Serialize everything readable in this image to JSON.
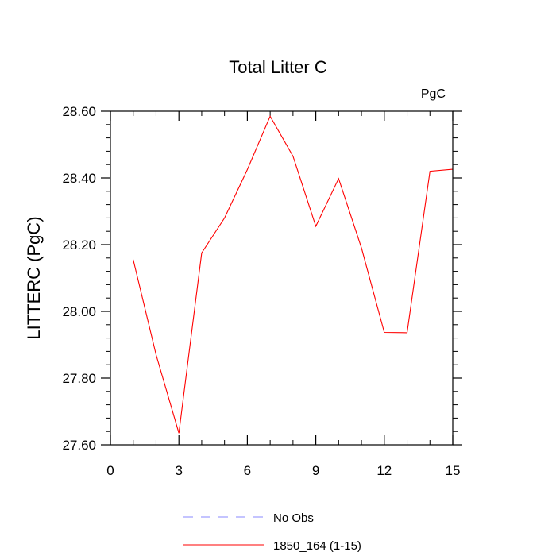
{
  "chart_data": {
    "type": "line",
    "title": "Total Litter C",
    "units_label": "PgC",
    "ylabel": "LITTERC  (PgC)",
    "xlabel": "",
    "xlim": [
      0,
      15
    ],
    "ylim": [
      27.6,
      28.6
    ],
    "x_ticks": [
      0,
      3,
      6,
      9,
      12,
      15
    ],
    "x_tick_labels": [
      "0",
      "3",
      "6",
      "9",
      "12",
      "15"
    ],
    "y_ticks": [
      27.6,
      27.8,
      28.0,
      28.2,
      28.4,
      28.6
    ],
    "y_tick_labels": [
      "27.60",
      "27.80",
      "28.00",
      "28.20",
      "28.40",
      "28.60"
    ],
    "grid": false,
    "legend_position": "bottom-center",
    "series": [
      {
        "name": "1850_164 (1-15)",
        "color": "#ff0000",
        "style": "solid",
        "x": [
          1,
          2,
          3,
          4,
          5,
          6,
          7,
          8,
          9,
          10,
          11,
          12,
          13,
          14,
          15
        ],
        "y": [
          28.155,
          27.87,
          27.635,
          28.175,
          28.28,
          28.425,
          28.585,
          28.465,
          28.255,
          28.398,
          28.19,
          27.937,
          27.936,
          28.42,
          28.426
        ]
      }
    ],
    "legend": [
      {
        "label": "No Obs",
        "color": "#8888ff",
        "style": "dashed"
      },
      {
        "label": "1850_164 (1-15)",
        "color": "#ff0000",
        "style": "solid"
      }
    ]
  }
}
